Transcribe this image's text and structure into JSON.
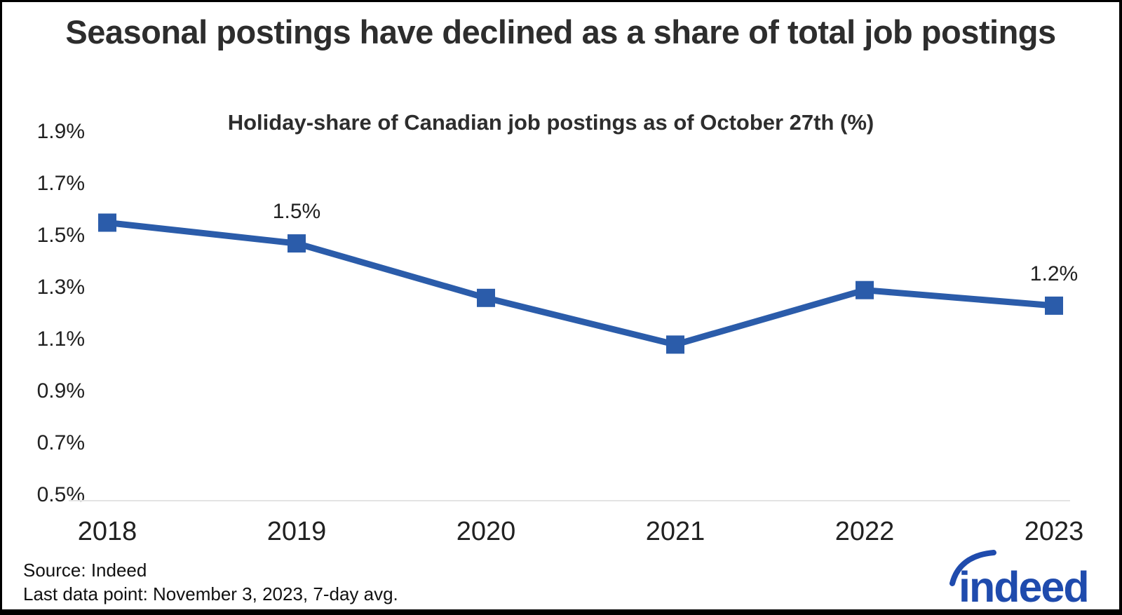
{
  "title": "Seasonal postings have declined as a share of total job postings",
  "subtitle": "Holiday-share of Canadian job postings as of October 27th (%)",
  "footer": {
    "source": "Source: Indeed",
    "note": "Last data point: November 3, 2023, 7-day avg.",
    "logo_text": "indeed"
  },
  "colors": {
    "accent_blue": "#2b5caa",
    "logo_blue": "#1f4bad",
    "title_text": "#2d2d2d",
    "axis_text": "#212121",
    "baseline_gray": "#e3e3e3",
    "background": "#ffffff",
    "frame_border": "#000000"
  },
  "chart_data": {
    "type": "line",
    "title": "Seasonal postings have declined as a share of total job postings",
    "subtitle": "Holiday-share of Canadian job postings as of October 27th (%)",
    "categories": [
      "2018",
      "2019",
      "2020",
      "2021",
      "2022",
      "2023"
    ],
    "series": [
      {
        "name": "Holiday-share of Canadian job postings (%)",
        "values": [
          1.55,
          1.47,
          1.26,
          1.08,
          1.29,
          1.23
        ]
      }
    ],
    "unit": "percent",
    "data_labels": [
      "",
      "1.5%",
      "",
      "",
      "",
      "1.2%"
    ],
    "yticks": [
      {
        "label": "1.9%",
        "value": 1.9
      },
      {
        "label": "1.7%",
        "value": 1.7
      },
      {
        "label": "1.5%",
        "value": 1.5
      },
      {
        "label": "1.3%",
        "value": 1.3
      },
      {
        "label": "1.1%",
        "value": 1.1
      },
      {
        "label": "0.9%",
        "value": 0.9
      },
      {
        "label": "0.7%",
        "value": 0.7
      },
      {
        "label": "0.5%",
        "value": 0.5
      }
    ],
    "ylim": [
      0.5,
      1.9
    ],
    "xlabel": "",
    "ylabel": "",
    "legend": "none",
    "grid": "single baseline at 0.5% only",
    "marker_shape": "square"
  }
}
